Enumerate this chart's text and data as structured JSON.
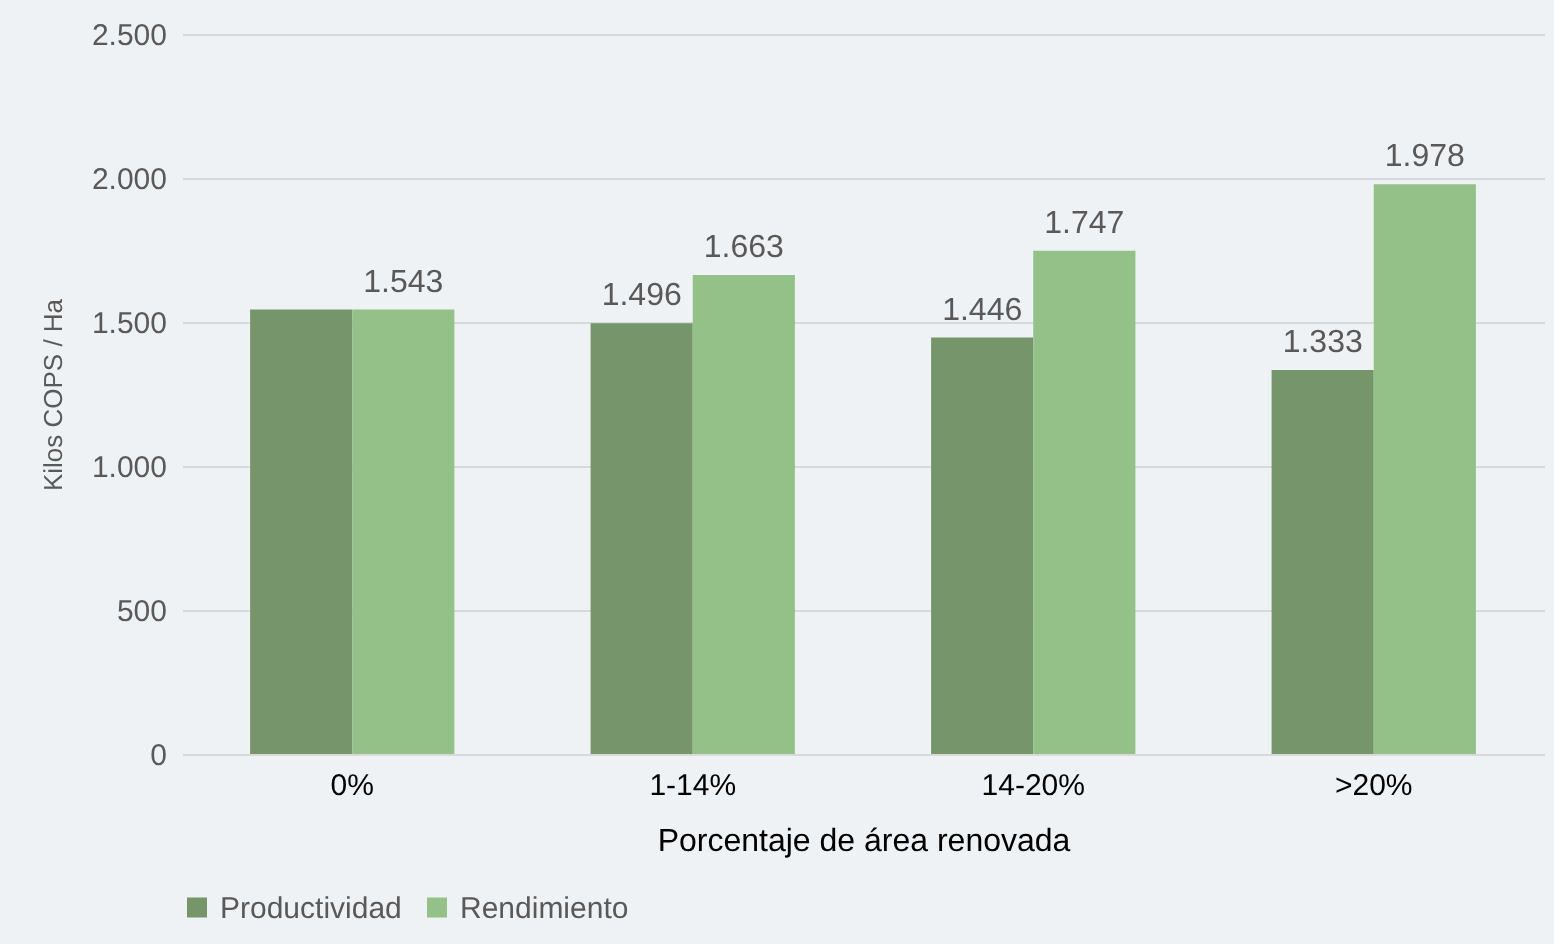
{
  "chart_data": {
    "type": "bar",
    "xlabel": "Porcentaje de área renovada",
    "ylabel": "Kilos COPS / Ha",
    "categories": [
      "0%",
      "1-14%",
      "14-20%",
      ">20%"
    ],
    "series": [
      {
        "name": "Productividad",
        "color": "#76956a",
        "values": [
          1543,
          1496,
          1446,
          1333
        ],
        "value_labels": [
          null,
          "1.496",
          "1.446",
          "1.333"
        ]
      },
      {
        "name": "Rendimiento",
        "color": "#93c187",
        "values": [
          1543,
          1663,
          1747,
          1978
        ],
        "value_labels": [
          "1.543",
          "1.663",
          "1.747",
          "1.978"
        ]
      }
    ],
    "ylim": [
      0,
      2500
    ],
    "yticks": [
      0,
      500,
      {
        "value": 1000,
        "label": "1.000"
      },
      {
        "value": 1500,
        "label": "1.500"
      },
      {
        "value": 2000,
        "label": "2.000"
      },
      {
        "value": 2500,
        "label": "2.500"
      }
    ],
    "grid": "y",
    "legend": "bottom"
  }
}
